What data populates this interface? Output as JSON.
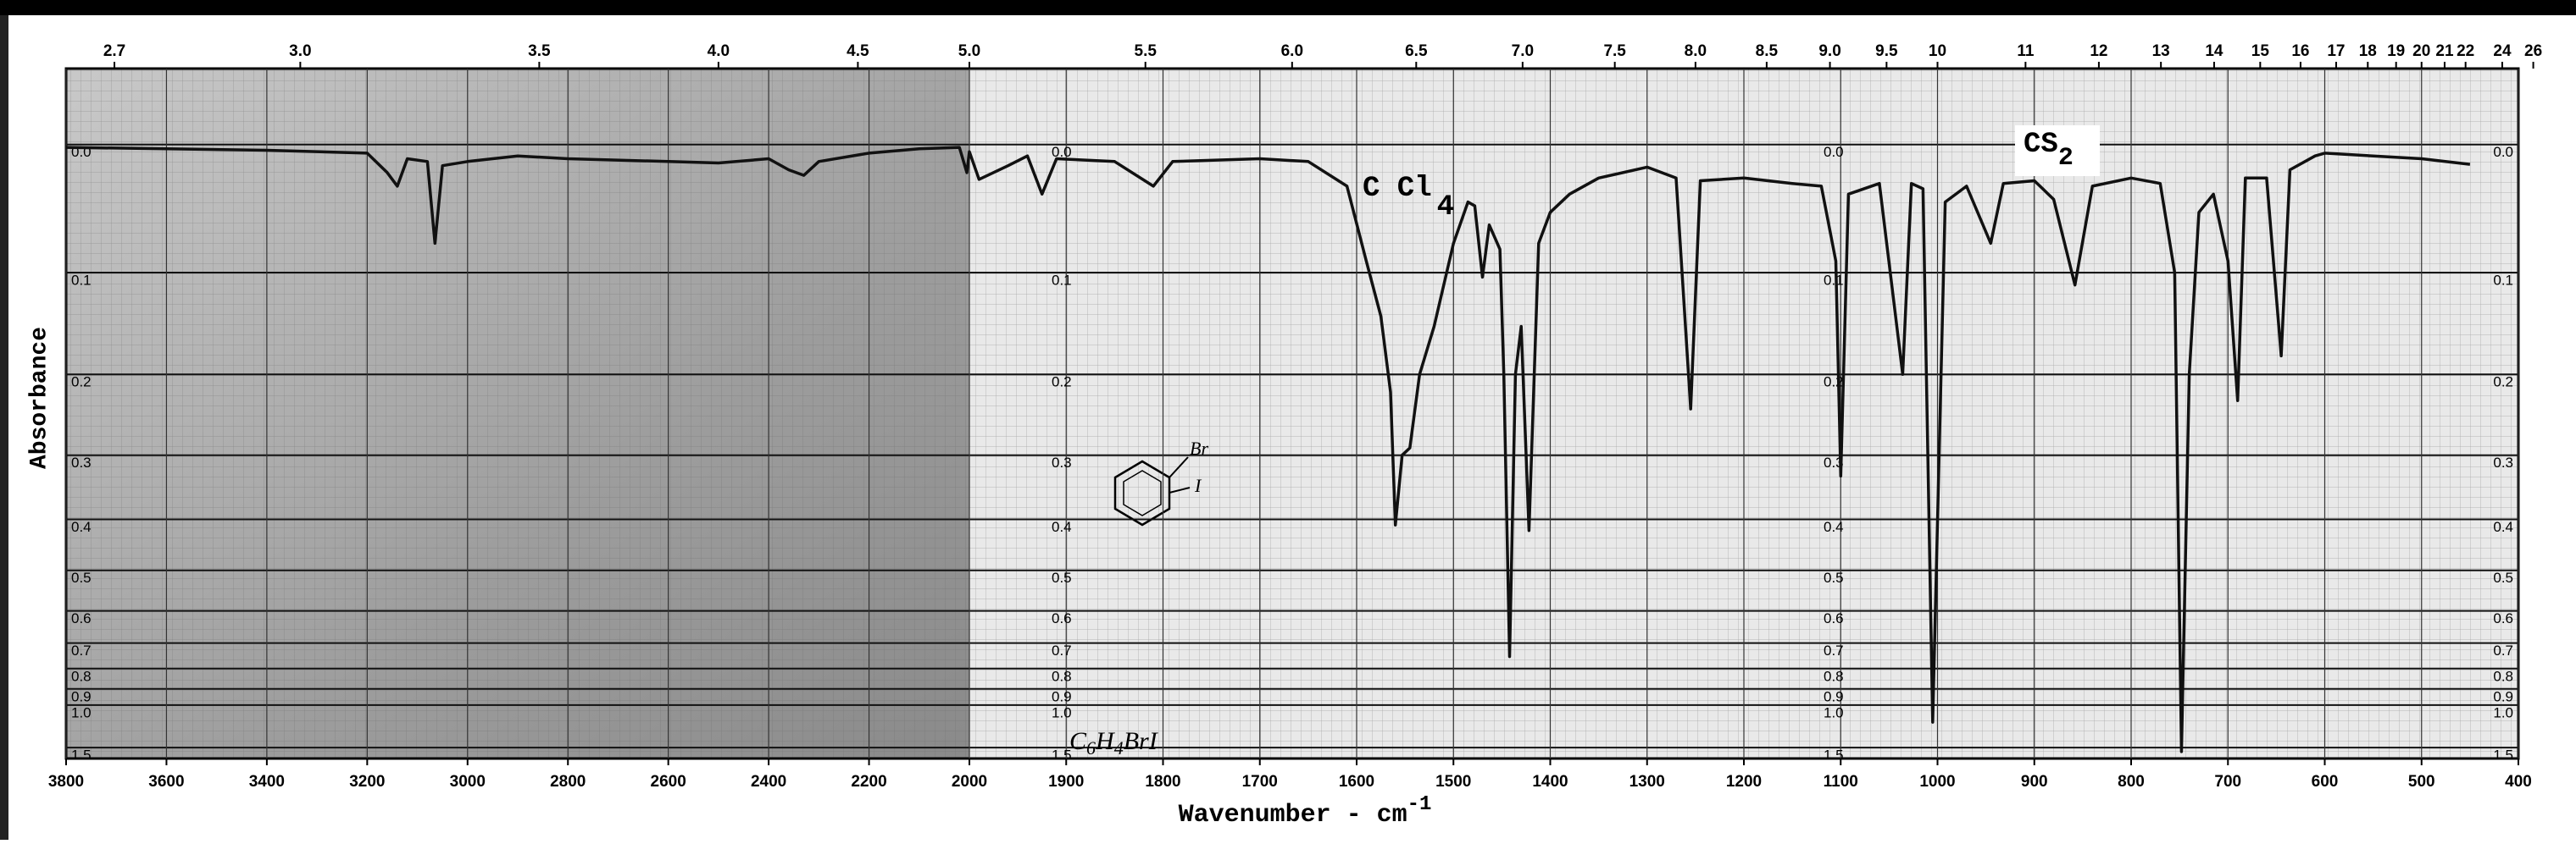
{
  "chart_data": {
    "type": "line",
    "x_label": [
      "Wavenumber - cm",
      "-1"
    ],
    "y_label": "Absorbance",
    "x": [
      3800,
      3600,
      3400,
      3200,
      3160,
      3140,
      3120,
      3080,
      3065,
      3050,
      3000,
      2900,
      2800,
      2600,
      2500,
      2400,
      2360,
      2330,
      2300,
      2200,
      2100,
      2020,
      2005,
      2000,
      1990,
      1960,
      1940,
      1925,
      1910,
      1850,
      1810,
      1790,
      1700,
      1650,
      1610,
      1590,
      1575,
      1565,
      1560,
      1553,
      1545,
      1535,
      1520,
      1500,
      1485,
      1478,
      1470,
      1463,
      1452,
      1448,
      1442,
      1436,
      1430,
      1422,
      1412,
      1400,
      1380,
      1350,
      1300,
      1270,
      1255,
      1245,
      1200,
      1150,
      1120,
      1105,
      1100,
      1092,
      1060,
      1036,
      1027,
      1015,
      1005,
      992,
      970,
      945,
      932,
      900,
      880,
      858,
      840,
      800,
      770,
      755,
      748,
      740,
      730,
      715,
      700,
      690,
      682,
      660,
      645,
      636,
      610,
      600,
      550,
      500,
      450
    ],
    "values": [
      0.002,
      0.003,
      0.004,
      0.006,
      0.02,
      0.03,
      0.01,
      0.012,
      0.075,
      0.015,
      0.012,
      0.008,
      0.01,
      0.012,
      0.013,
      0.01,
      0.018,
      0.022,
      0.012,
      0.006,
      0.003,
      0.002,
      0.02,
      0.005,
      0.025,
      0.015,
      0.008,
      0.036,
      0.01,
      0.012,
      0.03,
      0.012,
      0.01,
      0.012,
      0.03,
      0.09,
      0.14,
      0.22,
      0.41,
      0.3,
      0.29,
      0.2,
      0.15,
      0.075,
      0.042,
      0.045,
      0.104,
      0.06,
      0.08,
      0.2,
      0.75,
      0.2,
      0.15,
      0.42,
      0.075,
      0.05,
      0.036,
      0.024,
      0.016,
      0.024,
      0.24,
      0.026,
      0.024,
      0.028,
      0.03,
      0.09,
      0.33,
      0.036,
      0.028,
      0.2,
      0.028,
      0.032,
      1.14,
      0.042,
      0.03,
      0.075,
      0.028,
      0.026,
      0.04,
      0.111,
      0.03,
      0.024,
      0.028,
      0.1,
      1.6,
      0.2,
      0.05,
      0.036,
      0.09,
      0.23,
      0.024,
      0.024,
      0.18,
      0.018,
      0.008,
      0.006,
      0.008,
      0.01,
      0.014
    ],
    "color": "#111111",
    "xlim": [
      3800,
      400
    ],
    "x_scale_break": 2000,
    "xticks": [
      3800,
      3600,
      3400,
      3200,
      3000,
      2800,
      2600,
      2400,
      2200,
      2000,
      1900,
      1800,
      1700,
      1600,
      1500,
      1400,
      1300,
      1200,
      1100,
      1000,
      900,
      800,
      700,
      600,
      500,
      400
    ],
    "x2ticks_microns": [
      2.7,
      {
        "value": 3,
        "label": "3.0"
      },
      3.5,
      {
        "value": 4,
        "label": "4.0"
      },
      4.5,
      {
        "value": 5,
        "label": "5.0"
      },
      5.5,
      {
        "value": 6,
        "label": "6.0"
      },
      6.5,
      {
        "value": 7,
        "label": "7.0"
      },
      7.5,
      {
        "value": 8,
        "label": "8.0"
      },
      8.5,
      {
        "value": 9,
        "label": "9.0"
      },
      9.5,
      10,
      11,
      12,
      13,
      14,
      15,
      16,
      17,
      18,
      19,
      20,
      21,
      22,
      24,
      26
    ],
    "ylim": [
      -0.05,
      1.85
    ],
    "yticks": [
      {
        "value": 0,
        "label": "0.0"
      },
      0.1,
      0.2,
      0.3,
      0.4,
      0.5,
      0.6,
      0.7,
      0.8,
      0.9,
      {
        "value": 1,
        "label": "1.0"
      },
      1.5
    ],
    "y_scale": "transmittance-linear",
    "grid": true,
    "annotations": {
      "solvent_1": [
        "C Cl",
        "4"
      ],
      "solvent_2": [
        "CS",
        "2"
      ],
      "formula": [
        "C",
        "6",
        "H",
        "4",
        "BrI"
      ],
      "substituents": [
        "Br",
        "I"
      ]
    }
  }
}
